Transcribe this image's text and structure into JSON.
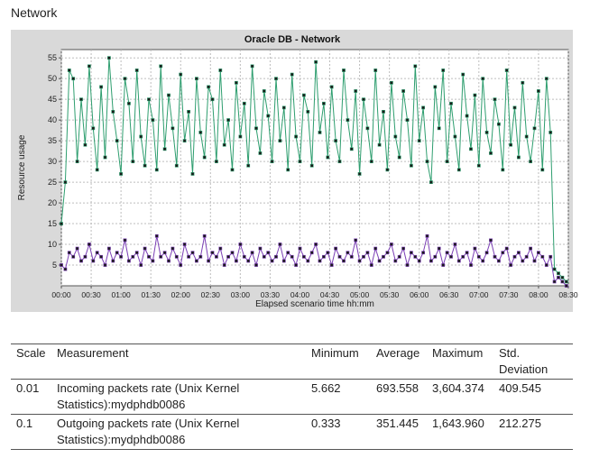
{
  "page": {
    "section_title": "Network"
  },
  "chart_data": {
    "type": "line",
    "title": "Oracle DB - Network",
    "xlabel": "Elapsed scenario time hh:mm",
    "ylabel": "Resource usage",
    "ylim": [
      0,
      57
    ],
    "yticks": [
      5,
      10,
      15,
      20,
      25,
      30,
      35,
      40,
      45,
      50,
      55
    ],
    "xlim_minutes": [
      0,
      510
    ],
    "xticks": [
      "00:00",
      "00:30",
      "01:00",
      "01:30",
      "02:00",
      "02:30",
      "03:00",
      "03:30",
      "04:00",
      "04:30",
      "05:00",
      "05:30",
      "06:00",
      "06:30",
      "07:00",
      "07:30",
      "08:00",
      "08:30"
    ],
    "xtick_minutes": [
      0,
      30,
      60,
      90,
      120,
      150,
      180,
      210,
      240,
      270,
      300,
      330,
      360,
      390,
      420,
      450,
      480,
      510
    ],
    "grid": true,
    "legend": "none",
    "series": [
      {
        "color": "#2e9e6f",
        "x_minutes": [
          0,
          4,
          8,
          12,
          16,
          20,
          24,
          28,
          32,
          36,
          40,
          44,
          48,
          52,
          56,
          60,
          64,
          68,
          72,
          76,
          80,
          84,
          88,
          92,
          96,
          100,
          104,
          108,
          112,
          116,
          120,
          124,
          128,
          132,
          136,
          140,
          144,
          148,
          152,
          156,
          160,
          164,
          168,
          172,
          176,
          180,
          184,
          188,
          192,
          196,
          200,
          204,
          208,
          212,
          216,
          220,
          224,
          228,
          232,
          236,
          240,
          244,
          248,
          252,
          256,
          260,
          264,
          268,
          272,
          276,
          280,
          284,
          288,
          292,
          296,
          300,
          304,
          308,
          312,
          316,
          320,
          324,
          328,
          332,
          336,
          340,
          344,
          348,
          352,
          356,
          360,
          364,
          368,
          372,
          376,
          380,
          384,
          388,
          392,
          396,
          400,
          404,
          408,
          412,
          416,
          420,
          424,
          428,
          432,
          436,
          440,
          444,
          448,
          452,
          456,
          460,
          464,
          468,
          472,
          476,
          480,
          484,
          488,
          492,
          496,
          500,
          504,
          508
        ],
        "values": [
          15,
          25,
          52,
          50,
          30,
          45,
          34,
          53,
          38,
          28,
          48,
          31,
          55,
          42,
          35,
          27,
          50,
          44,
          30,
          52,
          36,
          29,
          45,
          40,
          28,
          53,
          33,
          46,
          38,
          29,
          51,
          35,
          42,
          27,
          50,
          37,
          31,
          48,
          45,
          30,
          52,
          34,
          40,
          28,
          49,
          36,
          44,
          29,
          53,
          38,
          32,
          47,
          41,
          30,
          50,
          35,
          43,
          28,
          51,
          36,
          30,
          46,
          42,
          29,
          54,
          37,
          44,
          31,
          48,
          35,
          30,
          52,
          40,
          33,
          47,
          27,
          45,
          38,
          30,
          52,
          34,
          42,
          28,
          49,
          36,
          31,
          47,
          40,
          29,
          53,
          35,
          43,
          30,
          25,
          48,
          38,
          52,
          30,
          44,
          36,
          28,
          51,
          41,
          33,
          46,
          29,
          50,
          37,
          32,
          45,
          39,
          28,
          52,
          34,
          43,
          31,
          49,
          36,
          30,
          38,
          47,
          28,
          50,
          37,
          4,
          3,
          2,
          1
        ]
      },
      {
        "color": "#7b3fb5",
        "x_minutes": [
          0,
          4,
          8,
          12,
          16,
          20,
          24,
          28,
          32,
          36,
          40,
          44,
          48,
          52,
          56,
          60,
          64,
          68,
          72,
          76,
          80,
          84,
          88,
          92,
          96,
          100,
          104,
          108,
          112,
          116,
          120,
          124,
          128,
          132,
          136,
          140,
          144,
          148,
          152,
          156,
          160,
          164,
          168,
          172,
          176,
          180,
          184,
          188,
          192,
          196,
          200,
          204,
          208,
          212,
          216,
          220,
          224,
          228,
          232,
          236,
          240,
          244,
          248,
          252,
          256,
          260,
          264,
          268,
          272,
          276,
          280,
          284,
          288,
          292,
          296,
          300,
          304,
          308,
          312,
          316,
          320,
          324,
          328,
          332,
          336,
          340,
          344,
          348,
          352,
          356,
          360,
          364,
          368,
          372,
          376,
          380,
          384,
          388,
          392,
          396,
          400,
          404,
          408,
          412,
          416,
          420,
          424,
          428,
          432,
          436,
          440,
          444,
          448,
          452,
          456,
          460,
          464,
          468,
          472,
          476,
          480,
          484,
          488,
          492,
          496,
          500,
          504,
          508
        ],
        "values": [
          5,
          4,
          8,
          7,
          9,
          6,
          7,
          10,
          6,
          8,
          7,
          5,
          9,
          6,
          8,
          7,
          11,
          6,
          7,
          8,
          5,
          9,
          7,
          6,
          12,
          7,
          8,
          6,
          9,
          7,
          5,
          10,
          7,
          8,
          6,
          7,
          12,
          6,
          8,
          7,
          9,
          5,
          7,
          8,
          6,
          10,
          7,
          6,
          8,
          5,
          9,
          7,
          8,
          6,
          7,
          10,
          6,
          8,
          7,
          5,
          9,
          7,
          6,
          8,
          10,
          6,
          7,
          8,
          5,
          9,
          7,
          6,
          8,
          7,
          11,
          6,
          7,
          8,
          5,
          9,
          6,
          7,
          8,
          10,
          6,
          7,
          9,
          5,
          8,
          7,
          6,
          8,
          12,
          6,
          7,
          9,
          5,
          8,
          7,
          10,
          6,
          7,
          8,
          5,
          9,
          7,
          6,
          8,
          11,
          7,
          6,
          8,
          9,
          5,
          7,
          8,
          6,
          7,
          9,
          6,
          8,
          7,
          5,
          7,
          1,
          2,
          1,
          0
        ]
      }
    ]
  },
  "table": {
    "headers": {
      "scale": "Scale",
      "measurement": "Measurement",
      "minimum": "Minimum",
      "average": "Average",
      "maximum": "Maximum",
      "std_line1": "Std.",
      "std_line2": "Deviation"
    },
    "rows": [
      {
        "scale": "0.01",
        "measurement_line1": "Incoming packets rate (Unix Kernel",
        "measurement_line2": "Statistics):mydphdb0086",
        "minimum": "5.662",
        "average": "693.558",
        "maximum": "3,604.374",
        "std": "409.545"
      },
      {
        "scale": "0.1",
        "measurement_line1": "Outgoing packets rate (Unix Kernel",
        "measurement_line2": "Statistics):mydphdb0086",
        "minimum": "0.333",
        "average": "351.445",
        "maximum": "1,643.960",
        "std": "212.275"
      }
    ]
  }
}
